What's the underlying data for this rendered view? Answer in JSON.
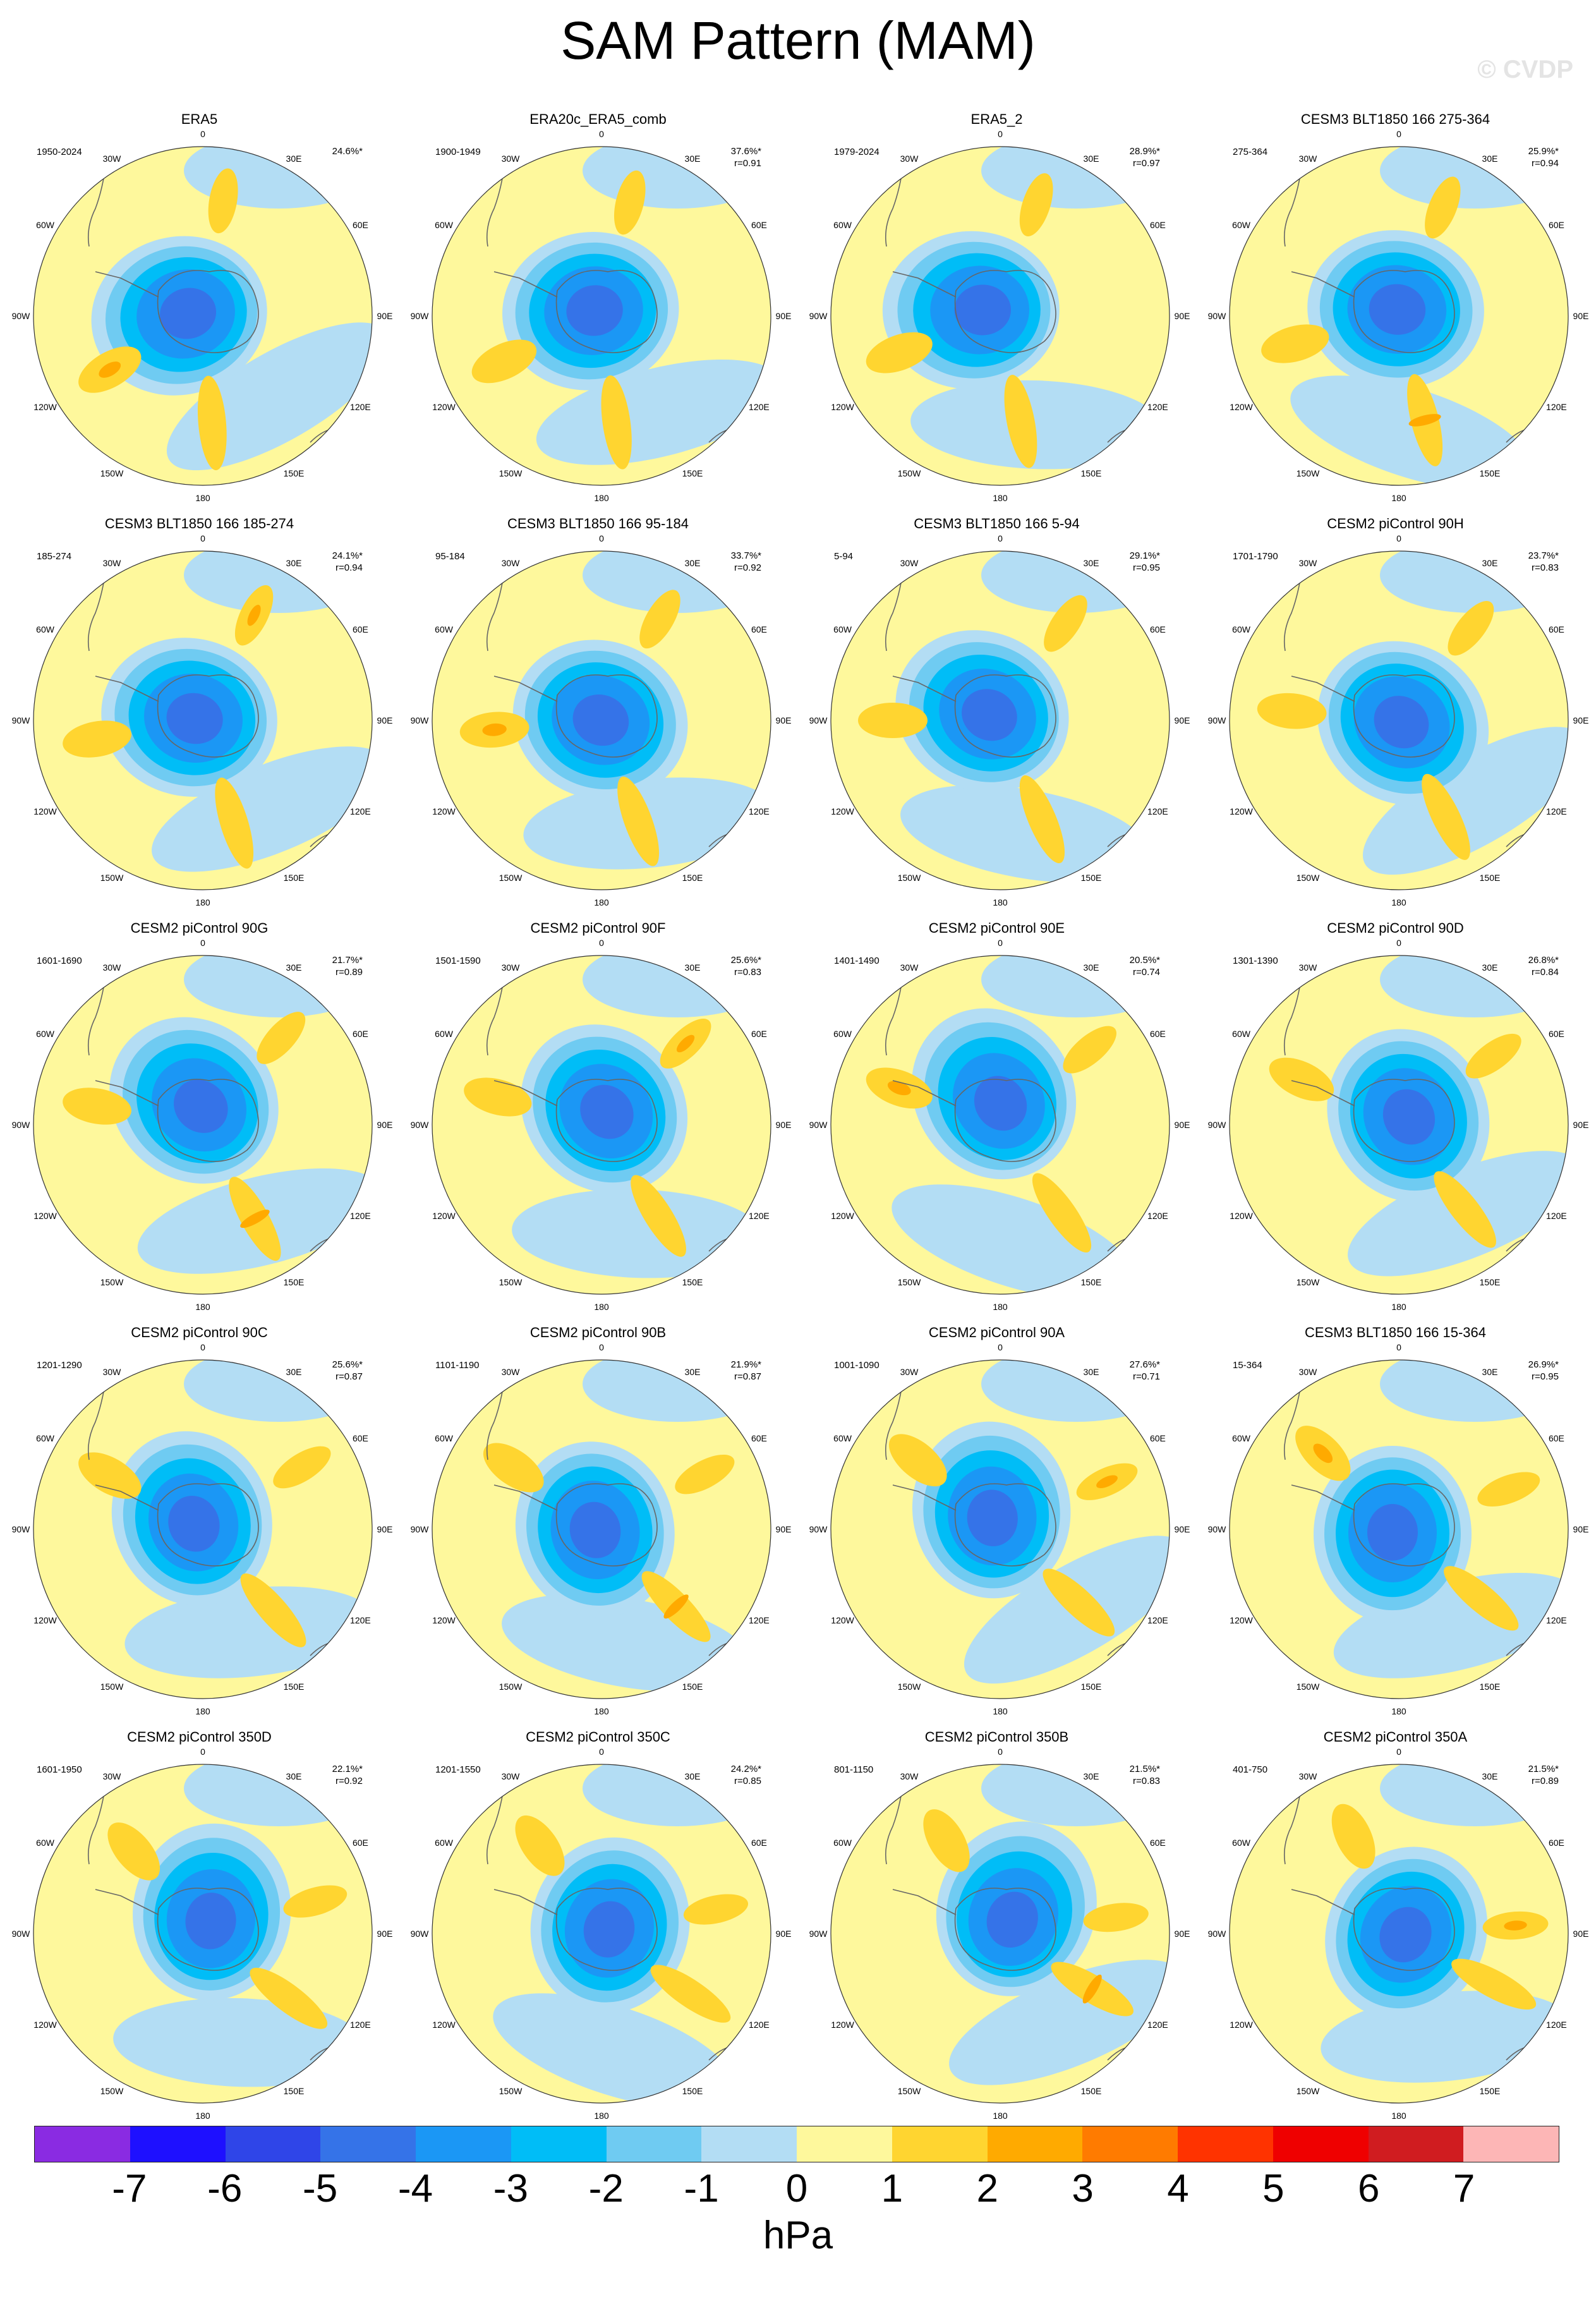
{
  "figure": {
    "title": "SAM Pattern (MAM)",
    "watermark": "© CVDP"
  },
  "chart_data": {
    "type": "polar-contour-map",
    "units": "hPa",
    "projection": "south-polar-stereographic",
    "longitude_labels": [
      "0",
      "30E",
      "60E",
      "90E",
      "120E",
      "150E",
      "180",
      "150W",
      "120W",
      "90W",
      "60W",
      "30W"
    ],
    "colorbar": {
      "ticks": [
        "-7",
        "-6",
        "-5",
        "-4",
        "-3",
        "-2",
        "-1",
        "0",
        "1",
        "2",
        "3",
        "4",
        "5",
        "6",
        "7"
      ],
      "colors": [
        "#8a2be2",
        "#1e10ff",
        "#2f45e8",
        "#3573e8",
        "#1b97f5",
        "#00bdf7",
        "#6fcbf2",
        "#b3ddf4",
        "#fef89c",
        "#ffd530",
        "#ffaa00",
        "#ff7b00",
        "#ff3300",
        "#ef0000",
        "#d01c20",
        "#fdb6b6"
      ]
    },
    "colors": {
      "pos1": "#fef89c",
      "pos2": "#ffd530",
      "pos3": "#ffaa00",
      "neg1": "#b3ddf4",
      "neg2": "#6fcbf2",
      "neg3": "#00bdf7",
      "neg4": "#1b97f5",
      "neg5": "#3573e8"
    },
    "panels": [
      {
        "title": "ERA5",
        "period": "1950-2024",
        "pct": "24.6%*",
        "r": ""
      },
      {
        "title": "ERA20c_ERA5_comb",
        "period": "1900-1949",
        "pct": "37.6%*",
        "r": "r=0.91"
      },
      {
        "title": "ERA5_2",
        "period": "1979-2024",
        "pct": "28.9%*",
        "r": "r=0.97"
      },
      {
        "title": "CESM3 BLT1850 166 275-364",
        "period": "275-364",
        "pct": "25.9%*",
        "r": "r=0.94"
      },
      {
        "title": "CESM3 BLT1850 166 185-274",
        "period": "185-274",
        "pct": "24.1%*",
        "r": "r=0.94"
      },
      {
        "title": "CESM3 BLT1850 166 95-184",
        "period": "95-184",
        "pct": "33.7%*",
        "r": "r=0.92"
      },
      {
        "title": "CESM3 BLT1850 166 5-94",
        "period": "5-94",
        "pct": "29.1%*",
        "r": "r=0.95"
      },
      {
        "title": "CESM2 piControl 90H",
        "period": "1701-1790",
        "pct": "23.7%*",
        "r": "r=0.83"
      },
      {
        "title": "CESM2 piControl 90G",
        "period": "1601-1690",
        "pct": "21.7%*",
        "r": "r=0.89"
      },
      {
        "title": "CESM2 piControl 90F",
        "period": "1501-1590",
        "pct": "25.6%*",
        "r": "r=0.83"
      },
      {
        "title": "CESM2 piControl 90E",
        "period": "1401-1490",
        "pct": "20.5%*",
        "r": "r=0.74"
      },
      {
        "title": "CESM2 piControl 90D",
        "period": "1301-1390",
        "pct": "26.8%*",
        "r": "r=0.84"
      },
      {
        "title": "CESM2 piControl 90C",
        "period": "1201-1290",
        "pct": "25.6%*",
        "r": "r=0.87"
      },
      {
        "title": "CESM2 piControl 90B",
        "period": "1101-1190",
        "pct": "21.9%*",
        "r": "r=0.87"
      },
      {
        "title": "CESM2 piControl 90A",
        "period": "1001-1090",
        "pct": "27.6%*",
        "r": "r=0.71"
      },
      {
        "title": "CESM3 BLT1850 166 15-364",
        "period": "15-364",
        "pct": "26.9%*",
        "r": "r=0.95"
      },
      {
        "title": "CESM2 piControl 350D",
        "period": "1601-1950",
        "pct": "22.1%*",
        "r": "r=0.92"
      },
      {
        "title": "CESM2 piControl 350C",
        "period": "1201-1550",
        "pct": "24.2%*",
        "r": "r=0.85"
      },
      {
        "title": "CESM2 piControl 350B",
        "period": "801-1150",
        "pct": "21.5%*",
        "r": "r=0.83"
      },
      {
        "title": "CESM2 piControl 350A",
        "period": "401-750",
        "pct": "21.5%*",
        "r": "r=0.89"
      }
    ]
  }
}
